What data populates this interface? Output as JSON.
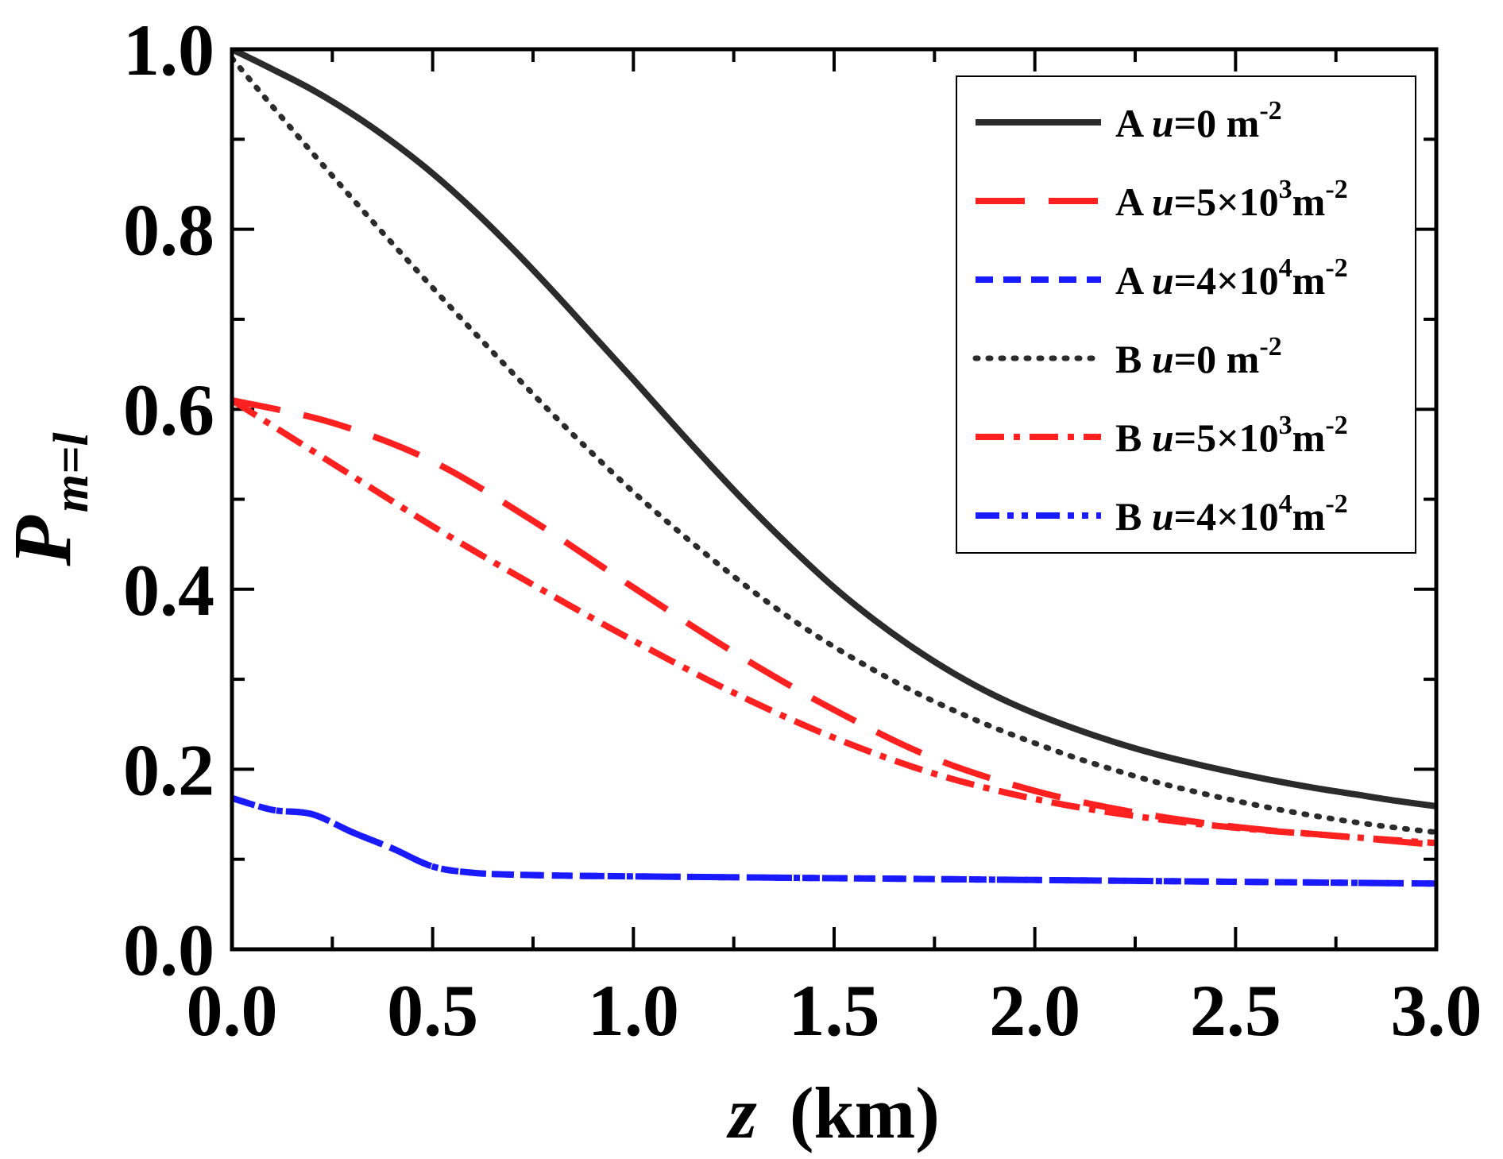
{
  "chart_data": {
    "type": "line",
    "title": "",
    "xlabel": {
      "var": "z",
      "unit": "(km)"
    },
    "ylabel": {
      "base": "P",
      "sub": "m=l"
    },
    "xlim": [
      0,
      3.0
    ],
    "ylim": [
      0,
      1.0
    ],
    "x_major_ticks": [
      0.0,
      0.5,
      1.0,
      1.5,
      2.0,
      2.5,
      3.0
    ],
    "x_tick_labels": [
      "0.0",
      "0.5",
      "1.0",
      "1.5",
      "2.0",
      "2.5",
      "3.0"
    ],
    "x_minor_ticks": [
      0.25,
      0.75,
      1.25,
      1.75,
      2.25,
      2.75
    ],
    "y_major_ticks": [
      0.0,
      0.2,
      0.4,
      0.6,
      0.8,
      1.0
    ],
    "y_tick_labels": [
      "0.0",
      "0.2",
      "0.4",
      "0.6",
      "0.8",
      "1.0"
    ],
    "y_minor_ticks": [
      0.1,
      0.3,
      0.5,
      0.7,
      0.9
    ],
    "grid": false,
    "legend_position": "top-right",
    "series": [
      {
        "name": "A u=0 m^-2",
        "legend": {
          "prefix": "A ",
          "var": "u",
          "mid": "=0 m",
          "exp": "-2"
        },
        "color": "#2b2b2b",
        "style": "solid",
        "x": [
          0,
          0.1,
          0.2,
          0.3,
          0.4,
          0.5,
          0.6,
          0.7,
          0.8,
          0.9,
          1.0,
          1.1,
          1.2,
          1.3,
          1.4,
          1.5,
          1.6,
          1.7,
          1.8,
          1.9,
          2.0,
          2.1,
          2.2,
          2.3,
          2.4,
          2.5,
          2.6,
          2.7,
          2.8,
          2.9,
          3.0
        ],
        "y": [
          1.0,
          0.978,
          0.955,
          0.928,
          0.897,
          0.862,
          0.822,
          0.778,
          0.731,
          0.682,
          0.633,
          0.583,
          0.534,
          0.487,
          0.443,
          0.402,
          0.366,
          0.334,
          0.306,
          0.282,
          0.262,
          0.245,
          0.23,
          0.217,
          0.206,
          0.196,
          0.187,
          0.179,
          0.172,
          0.165,
          0.159
        ]
      },
      {
        "name": "A u=5×10^3 m^-2",
        "legend": {
          "prefix": "A ",
          "var": "u",
          "mid": "=5×10",
          "sup1": "3",
          "mid2": "m",
          "exp": "-2"
        },
        "color": "#ff2020",
        "style": "longdash",
        "x": [
          0,
          0.25,
          0.5,
          0.75,
          1.0,
          1.25,
          1.5,
          1.75,
          2.0,
          2.25,
          2.5,
          2.75,
          3.0
        ],
        "y": [
          0.61,
          0.585,
          0.542,
          0.476,
          0.402,
          0.33,
          0.266,
          0.212,
          0.176,
          0.152,
          0.136,
          0.126,
          0.116
        ]
      },
      {
        "name": "A u=4×10^4 m^-2",
        "legend": {
          "prefix": "A ",
          "var": "u",
          "mid": "=4×10",
          "sup1": "4",
          "mid2": "m",
          "exp": "-2"
        },
        "color": "#1a1aff",
        "style": "shortdash",
        "x": [
          0,
          0.1,
          0.2,
          0.3,
          0.4,
          0.5,
          0.6,
          0.7,
          0.8,
          1.0,
          1.5,
          2.0,
          2.5,
          3.0
        ],
        "y": [
          0.168,
          0.155,
          0.15,
          0.13,
          0.112,
          0.092,
          0.085,
          0.083,
          0.082,
          0.081,
          0.079,
          0.077,
          0.075,
          0.073
        ]
      },
      {
        "name": "B u=0 m^-2",
        "legend": {
          "prefix": "B ",
          "var": "u",
          "mid": "=0 m",
          "exp": "-2"
        },
        "color": "#2b2b2b",
        "style": "dotted",
        "x": [
          0,
          0.1,
          0.2,
          0.3,
          0.4,
          0.5,
          0.6,
          0.7,
          0.8,
          0.9,
          1.0,
          1.1,
          1.2,
          1.3,
          1.4,
          1.5,
          1.6,
          1.7,
          1.8,
          1.9,
          2.0,
          2.1,
          2.2,
          2.3,
          2.4,
          2.5,
          2.6,
          2.7,
          2.8,
          2.9,
          3.0
        ],
        "y": [
          0.99,
          0.937,
          0.885,
          0.834,
          0.784,
          0.735,
          0.687,
          0.64,
          0.594,
          0.55,
          0.508,
          0.469,
          0.432,
          0.397,
          0.365,
          0.336,
          0.31,
          0.286,
          0.265,
          0.246,
          0.229,
          0.213,
          0.199,
          0.186,
          0.175,
          0.165,
          0.156,
          0.148,
          0.141,
          0.135,
          0.13
        ]
      },
      {
        "name": "B u=5×10^3 m^-2",
        "legend": {
          "prefix": "B ",
          "var": "u",
          "mid": "=5×10",
          "sup1": "3",
          "mid2": "m",
          "exp": "-2"
        },
        "color": "#ff2020",
        "style": "dashdot",
        "x": [
          0,
          0.25,
          0.5,
          0.75,
          1.0,
          1.25,
          1.5,
          1.75,
          2.0,
          2.25,
          2.5,
          2.75,
          3.0
        ],
        "y": [
          0.61,
          0.54,
          0.47,
          0.405,
          0.343,
          0.285,
          0.235,
          0.195,
          0.167,
          0.148,
          0.135,
          0.126,
          0.118
        ]
      },
      {
        "name": "B u=4×10^4 m^-2",
        "legend": {
          "prefix": "B ",
          "var": "u",
          "mid": "=4×10",
          "sup1": "4",
          "mid2": "m",
          "exp": "-2"
        },
        "color": "#1a1aff",
        "style": "dashdotdot",
        "x": [
          0,
          0.1,
          0.2,
          0.3,
          0.4,
          0.5,
          0.6,
          0.7,
          0.8,
          1.0,
          1.5,
          2.0,
          2.5,
          3.0
        ],
        "y": [
          0.168,
          0.155,
          0.15,
          0.13,
          0.112,
          0.092,
          0.085,
          0.083,
          0.082,
          0.081,
          0.079,
          0.077,
          0.075,
          0.073
        ]
      }
    ]
  }
}
